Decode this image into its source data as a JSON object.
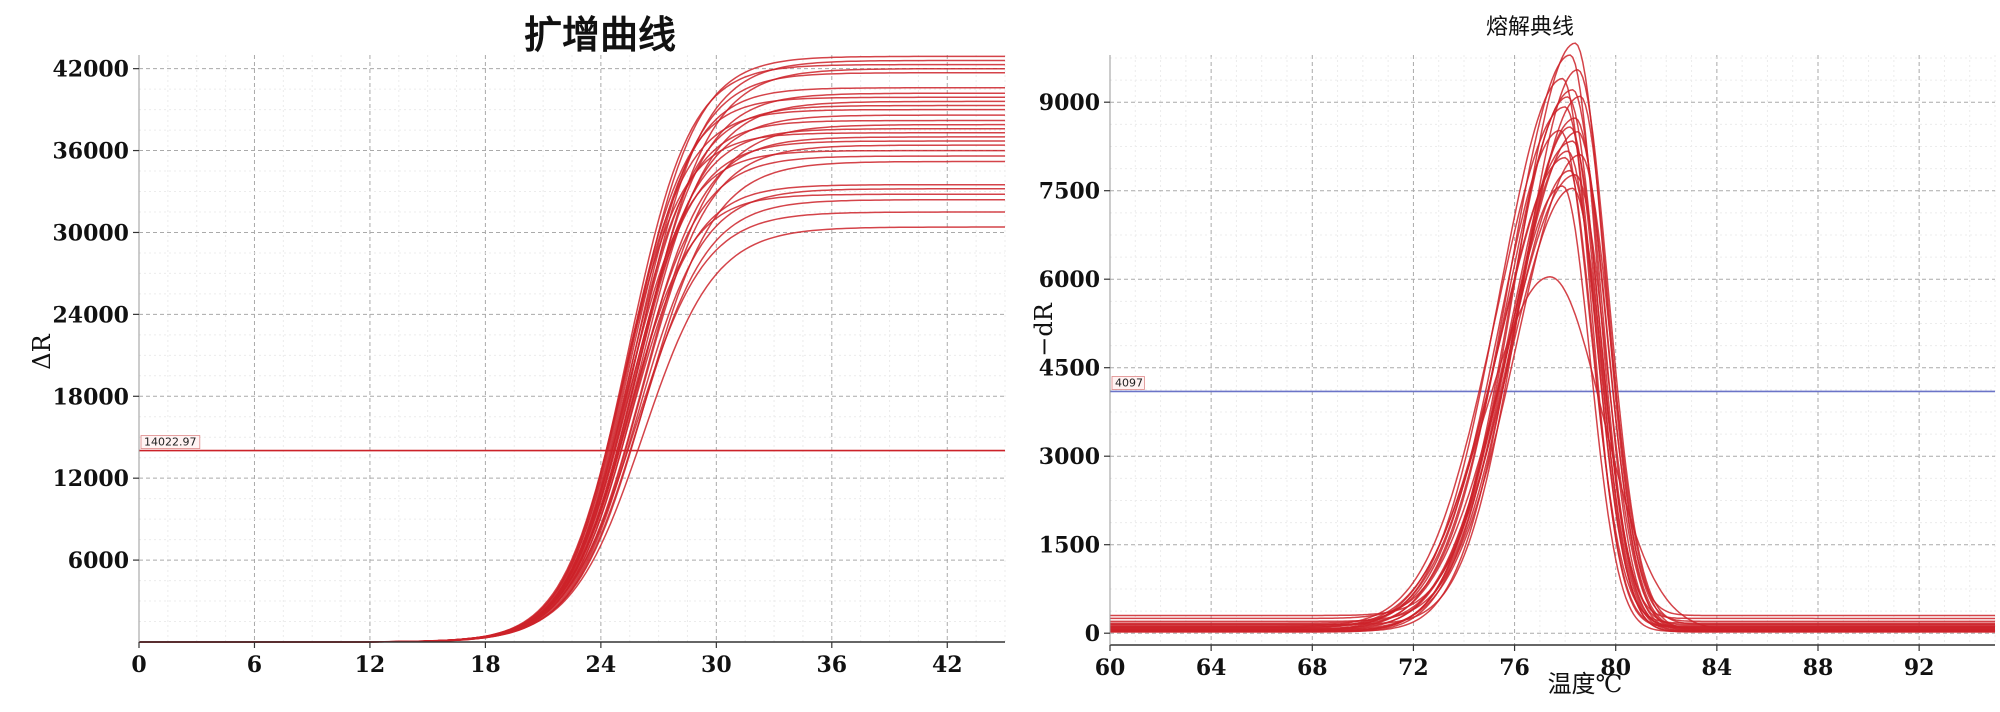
{
  "chart_data": [
    {
      "type": "line",
      "title": "扩增曲线",
      "xlabel": "",
      "ylabel": "ΔR",
      "xlim": [
        0,
        45
      ],
      "ylim": [
        0,
        43000
      ],
      "x_ticks": [
        0,
        6,
        12,
        18,
        24,
        30,
        36,
        42
      ],
      "y_ticks": [
        6000,
        12000,
        18000,
        24000,
        30000,
        36000,
        42000
      ],
      "x_tick_labels": [
        "0",
        "6",
        "12",
        "18",
        "24",
        "30",
        "36",
        "42"
      ],
      "y_tick_labels": [
        "6000",
        "12000",
        "18000",
        "24000",
        "30000",
        "36000",
        "42000"
      ],
      "grid": true,
      "line_color": "#cc2229",
      "threshold": {
        "value": 14022.97,
        "label": "14022.97",
        "color": "#cc2229"
      },
      "series_model": "sigmoid y = plateau / (1 + exp(-(x - midpoint) / slope))",
      "series": [
        {
          "plateau": 42900,
          "midpoint": 25.6,
          "slope": 1.65
        },
        {
          "plateau": 42600,
          "midpoint": 25.9,
          "slope": 1.7
        },
        {
          "plateau": 42300,
          "midpoint": 25.4,
          "slope": 1.6
        },
        {
          "plateau": 42000,
          "midpoint": 26.1,
          "slope": 1.75
        },
        {
          "plateau": 41700,
          "midpoint": 25.7,
          "slope": 1.65
        },
        {
          "plateau": 40600,
          "midpoint": 25.5,
          "slope": 1.6
        },
        {
          "plateau": 40200,
          "midpoint": 25.9,
          "slope": 1.7
        },
        {
          "plateau": 39900,
          "midpoint": 25.3,
          "slope": 1.55
        },
        {
          "plateau": 39600,
          "midpoint": 26.0,
          "slope": 1.75
        },
        {
          "plateau": 39300,
          "midpoint": 25.6,
          "slope": 1.65
        },
        {
          "plateau": 39000,
          "midpoint": 25.2,
          "slope": 1.6
        },
        {
          "plateau": 38600,
          "midpoint": 25.8,
          "slope": 1.7
        },
        {
          "plateau": 38200,
          "midpoint": 25.4,
          "slope": 1.6
        },
        {
          "plateau": 37900,
          "midpoint": 26.2,
          "slope": 1.8
        },
        {
          "plateau": 37600,
          "midpoint": 25.6,
          "slope": 1.65
        },
        {
          "plateau": 37300,
          "midpoint": 25.1,
          "slope": 1.55
        },
        {
          "plateau": 37000,
          "midpoint": 25.9,
          "slope": 1.7
        },
        {
          "plateau": 36700,
          "midpoint": 25.5,
          "slope": 1.65
        },
        {
          "plateau": 36400,
          "midpoint": 26.1,
          "slope": 1.75
        },
        {
          "plateau": 36000,
          "midpoint": 25.3,
          "slope": 1.6
        },
        {
          "plateau": 35600,
          "midpoint": 25.7,
          "slope": 1.7
        },
        {
          "plateau": 35200,
          "midpoint": 26.3,
          "slope": 1.8
        },
        {
          "plateau": 33500,
          "midpoint": 25.6,
          "slope": 1.65
        },
        {
          "plateau": 33200,
          "midpoint": 25.9,
          "slope": 1.7
        },
        {
          "plateau": 32800,
          "midpoint": 25.4,
          "slope": 1.6
        },
        {
          "plateau": 32400,
          "midpoint": 26.0,
          "slope": 1.75
        },
        {
          "plateau": 31500,
          "midpoint": 25.8,
          "slope": 1.8
        },
        {
          "plateau": 30400,
          "midpoint": 26.2,
          "slope": 1.85
        }
      ]
    },
    {
      "type": "line",
      "title": "熔解典线",
      "xlabel": "温度℃",
      "ylabel": "−dR",
      "xlim": [
        60,
        95
      ],
      "ylim": [
        -200,
        9800
      ],
      "x_ticks": [
        60,
        64,
        68,
        72,
        76,
        80,
        84,
        88,
        92
      ],
      "y_ticks": [
        0,
        1500,
        3000,
        4500,
        6000,
        7500,
        9000
      ],
      "x_tick_labels": [
        "60",
        "64",
        "68",
        "72",
        "76",
        "80",
        "84",
        "88",
        "92"
      ],
      "y_tick_labels": [
        "0",
        "1500",
        "3000",
        "4500",
        "6000",
        "7500",
        "9000"
      ],
      "grid": true,
      "line_color": "#cc2229",
      "threshold": {
        "value": 4097,
        "label": "4097",
        "color": "#6b74c8"
      },
      "series_model": "asymmetric gaussian peak: y = base + height * exp(-(x-center)^2 / (2*w^2)), w = left_width below center, right_width above",
      "series": [
        {
          "center": 78.4,
          "height": 9700,
          "left_width": 2.3,
          "right_width": 1.15,
          "base": 300
        },
        {
          "center": 78.2,
          "height": 9550,
          "left_width": 2.4,
          "right_width": 1.1,
          "base": 250
        },
        {
          "center": 78.5,
          "height": 9400,
          "left_width": 2.2,
          "right_width": 1.2,
          "base": 150
        },
        {
          "center": 77.9,
          "height": 9300,
          "left_width": 2.5,
          "right_width": 1.1,
          "base": 100
        },
        {
          "center": 78.3,
          "height": 9150,
          "left_width": 2.6,
          "right_width": 1.15,
          "base": 60
        },
        {
          "center": 78.1,
          "height": 9050,
          "left_width": 2.3,
          "right_width": 1.2,
          "base": 40
        },
        {
          "center": 78.6,
          "height": 8900,
          "left_width": 2.4,
          "right_width": 1.1,
          "base": 200
        },
        {
          "center": 78.0,
          "height": 8800,
          "left_width": 2.7,
          "right_width": 1.15,
          "base": 120
        },
        {
          "center": 78.4,
          "height": 8650,
          "left_width": 2.5,
          "right_width": 1.2,
          "base": 80
        },
        {
          "center": 78.2,
          "height": 8550,
          "left_width": 2.2,
          "right_width": 1.1,
          "base": 30
        },
        {
          "center": 78.5,
          "height": 8450,
          "left_width": 2.6,
          "right_width": 1.15,
          "base": 50
        },
        {
          "center": 77.8,
          "height": 8350,
          "left_width": 2.4,
          "right_width": 1.2,
          "base": 170
        },
        {
          "center": 78.3,
          "height": 8250,
          "left_width": 2.8,
          "right_width": 1.1,
          "base": 90
        },
        {
          "center": 78.1,
          "height": 8150,
          "left_width": 2.3,
          "right_width": 1.15,
          "base": 20
        },
        {
          "center": 78.6,
          "height": 8050,
          "left_width": 2.5,
          "right_width": 1.2,
          "base": 60
        },
        {
          "center": 78.0,
          "height": 7950,
          "left_width": 2.6,
          "right_width": 1.1,
          "base": 110
        },
        {
          "center": 78.2,
          "height": 7800,
          "left_width": 2.4,
          "right_width": 1.15,
          "base": 40
        },
        {
          "center": 78.4,
          "height": 7700,
          "left_width": 2.7,
          "right_width": 1.2,
          "base": 70
        },
        {
          "center": 77.9,
          "height": 7550,
          "left_width": 2.3,
          "right_width": 1.1,
          "base": 30
        },
        {
          "center": 78.3,
          "height": 7400,
          "left_width": 2.5,
          "right_width": 1.15,
          "base": 140
        },
        {
          "center": 77.4,
          "height": 6000,
          "left_width": 2.6,
          "right_width": 2.1,
          "base": 40
        }
      ]
    }
  ]
}
